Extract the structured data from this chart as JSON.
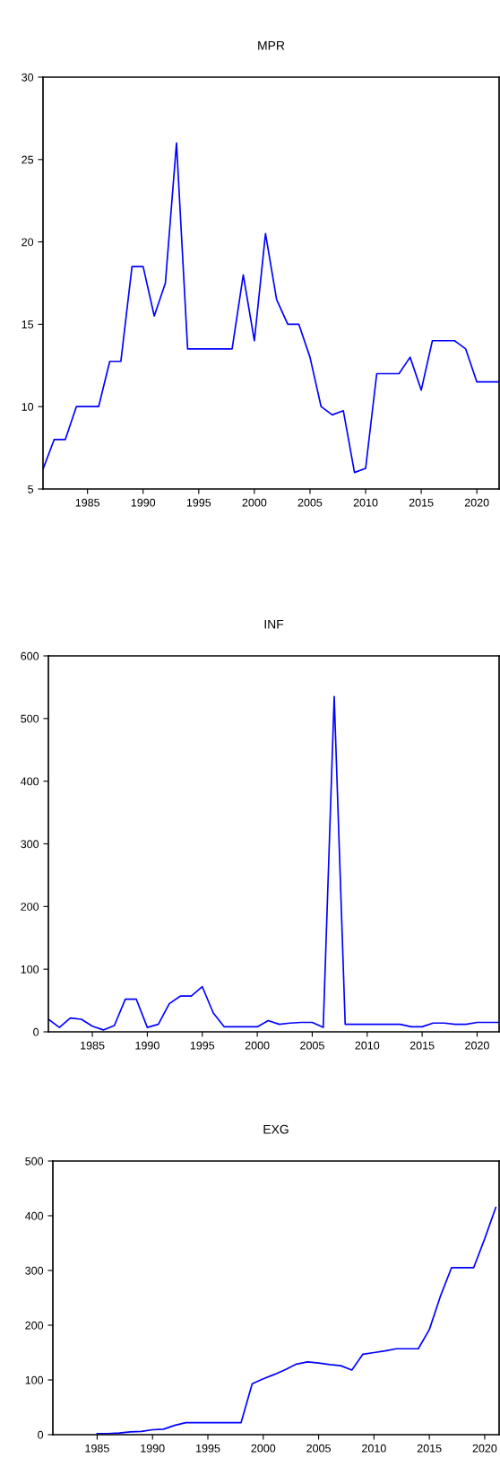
{
  "chart_data": [
    {
      "type": "line",
      "title": "MPR",
      "x": [
        1981,
        1982,
        1983,
        1984,
        1985,
        1986,
        1987,
        1988,
        1989,
        1990,
        1991,
        1992,
        1993,
        1994,
        1995,
        1996,
        1997,
        1998,
        1999,
        2000,
        2001,
        2002,
        2003,
        2004,
        2005,
        2006,
        2007,
        2008,
        2009,
        2010,
        2011,
        2012,
        2013,
        2014,
        2015,
        2016,
        2017,
        2018,
        2019,
        2020,
        2021,
        2022
      ],
      "xlim": [
        1981,
        2022
      ],
      "xticks": [
        1985,
        1990,
        1995,
        2000,
        2005,
        2010,
        2015,
        2020
      ],
      "ylim": [
        5,
        30
      ],
      "yticks": [
        5,
        10,
        15,
        20,
        25,
        30
      ],
      "series": [
        {
          "color": "#0000ff",
          "values": [
            6.2,
            8,
            8,
            10,
            10,
            10,
            12.75,
            12.75,
            18.5,
            18.5,
            15.5,
            17.5,
            26,
            13.5,
            13.5,
            13.5,
            13.5,
            13.5,
            18,
            14,
            20.5,
            16.5,
            15,
            15,
            13,
            10,
            9.5,
            9.75,
            6,
            6.25,
            12,
            12,
            12,
            13,
            11,
            14,
            14,
            14,
            13.5,
            11.5,
            11.5,
            11.5
          ]
        }
      ]
    },
    {
      "type": "line",
      "title": "INF",
      "x": [
        1981,
        1982,
        1983,
        1984,
        1985,
        1986,
        1987,
        1988,
        1989,
        1990,
        1991,
        1992,
        1993,
        1994,
        1995,
        1996,
        1997,
        1998,
        1999,
        2000,
        2001,
        2002,
        2003,
        2004,
        2005,
        2006,
        2007,
        2008,
        2009,
        2010,
        2011,
        2012,
        2013,
        2014,
        2015,
        2016,
        2017,
        2018,
        2019,
        2020,
        2021,
        2022
      ],
      "xlim": [
        1981,
        2022
      ],
      "xticks": [
        1985,
        1990,
        1995,
        2000,
        2005,
        2010,
        2015,
        2020
      ],
      "ylim": [
        0,
        600
      ],
      "yticks": [
        0,
        100,
        200,
        300,
        400,
        500,
        600
      ],
      "series": [
        {
          "color": "#0000ff",
          "values": [
            20,
            7,
            22,
            20,
            9,
            3,
            10,
            52,
            52,
            7,
            12,
            45,
            57,
            57,
            72,
            30,
            8,
            8,
            8,
            8,
            18,
            12,
            14,
            15,
            15,
            7,
            535,
            12,
            12,
            12,
            12,
            12,
            12,
            8,
            8,
            14,
            14,
            12,
            12,
            15,
            15,
            15
          ]
        }
      ]
    },
    {
      "type": "line",
      "title": "EXG",
      "x": [
        1985,
        1986,
        1987,
        1988,
        1989,
        1990,
        1991,
        1992,
        1993,
        1994,
        1995,
        1996,
        1997,
        1998,
        1999,
        2000,
        2001,
        2002,
        2003,
        2004,
        2005,
        2006,
        2007,
        2008,
        2009,
        2010,
        2011,
        2012,
        2013,
        2014,
        2015,
        2016,
        2017,
        2018,
        2019,
        2020,
        2021
      ],
      "xlim": [
        1981,
        2021.3
      ],
      "xticks": [
        1985,
        1990,
        1995,
        2000,
        2005,
        2010,
        2015,
        2020
      ],
      "ylim": [
        0,
        500
      ],
      "yticks": [
        0,
        100,
        200,
        300,
        400,
        500
      ],
      "series": [
        {
          "color": "#0000ff",
          "values": [
            2,
            2,
            3,
            5,
            6,
            9,
            10,
            17,
            22,
            22,
            22,
            22,
            22,
            22,
            93,
            102,
            110,
            119,
            129,
            133,
            131,
            128,
            126,
            118,
            147,
            150,
            153,
            157,
            157,
            157,
            192,
            253,
            305,
            305,
            305,
            358,
            415
          ]
        }
      ]
    }
  ]
}
